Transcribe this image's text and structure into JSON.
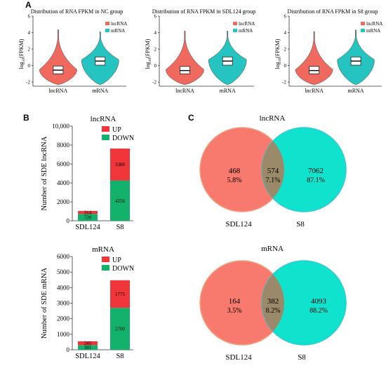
{
  "panels": {
    "a": "A",
    "b": "B",
    "c": "C"
  },
  "colors": {
    "lncrna": "#f0695f",
    "mrna": "#26c4c0",
    "up": "#f0353b",
    "down": "#13b26c",
    "venn_left": "#f87a6e",
    "venn_right": "#0fe3cd",
    "venn_overlap": "#9a8a6a"
  },
  "chart_data": [
    {
      "type": "violin",
      "title": "Distribution of RNA FPKM in NC group",
      "ylabel": "log10(FPKM)",
      "ylabel_main": "log",
      "ylabel_sub": "10",
      "ylabel_rest": "(FPKM)",
      "ylim": [
        -2.5,
        6
      ],
      "yticks": [
        "-2",
        "0",
        "2",
        "4",
        "6"
      ],
      "categories": [
        "lncRNA",
        "mRNA"
      ],
      "legend": [
        "lncRNA",
        "mRNA"
      ],
      "series": [
        {
          "name": "lncRNA",
          "q1": -1.0,
          "median": -0.55,
          "q3": -0.05,
          "mode": -0.5,
          "min": -2.3,
          "max": 4.3
        },
        {
          "name": "mRNA",
          "q1": 0.05,
          "median": 0.55,
          "q3": 1.05,
          "mode": 0.7,
          "min": -2.3,
          "max": 4.1
        }
      ]
    },
    {
      "type": "violin",
      "title": "Distribution of RNA FPKM in SDL124 group",
      "ylabel": "log10(FPKM)",
      "ylabel_main": "log",
      "ylabel_sub": "10",
      "ylabel_rest": "(FPKM)",
      "ylim": [
        -2.5,
        6
      ],
      "yticks": [
        "-2",
        "0",
        "2",
        "4",
        "6"
      ],
      "categories": [
        "lncRNA",
        "mRNA"
      ],
      "legend": [
        "lncRNA",
        "mRNA"
      ],
      "series": [
        {
          "name": "lncRNA",
          "q1": -1.0,
          "median": -0.6,
          "q3": -0.1,
          "mode": -0.5,
          "min": -2.3,
          "max": 4.2
        },
        {
          "name": "mRNA",
          "q1": 0.05,
          "median": 0.55,
          "q3": 1.05,
          "mode": 0.7,
          "min": -2.3,
          "max": 4.2
        }
      ]
    },
    {
      "type": "violin",
      "title": "Distribution of RNA FPKM in S8 group",
      "ylabel": "log10(FPKM)",
      "ylabel_main": "log",
      "ylabel_sub": "10",
      "ylabel_rest": "(FPKM)",
      "ylim": [
        -2.5,
        6
      ],
      "yticks": [
        "-2",
        "0",
        "2",
        "4",
        "6"
      ],
      "categories": [
        "lncRNA",
        "mRNA"
      ],
      "legend": [
        "lncRNA",
        "mRNA"
      ],
      "series": [
        {
          "name": "lncRNA",
          "q1": -1.0,
          "median": -0.6,
          "q3": -0.1,
          "mode": -0.5,
          "min": -2.3,
          "max": 4.1
        },
        {
          "name": "mRNA",
          "q1": 0.05,
          "median": 0.55,
          "q3": 1.05,
          "mode": 0.7,
          "min": -2.3,
          "max": 4.3
        }
      ]
    },
    {
      "type": "bar",
      "stacked": true,
      "title": "lncRNA",
      "ylabel": "Number of SDE lncRNA",
      "categories": [
        "SDL124",
        "S8"
      ],
      "ylim": [
        0,
        10000
      ],
      "yticks": [
        "0",
        "2000",
        "4000",
        "6000",
        "8000",
        "10,000"
      ],
      "ytick_values": [
        0,
        2000,
        4000,
        6000,
        8000,
        10000
      ],
      "legend": [
        "UP",
        "DOWN"
      ],
      "series": [
        {
          "name": "DOWN",
          "values": [
            728,
            4256
          ],
          "labels": [
            "728",
            "4256"
          ]
        },
        {
          "name": "UP",
          "values": [
            314,
            3380
          ],
          "labels": [
            "314",
            "3380"
          ]
        }
      ]
    },
    {
      "type": "bar",
      "stacked": true,
      "title": "mRNA",
      "ylabel": "Number of SDE mRNA",
      "categories": [
        "SDL124",
        "S8"
      ],
      "ylim": [
        0,
        6000
      ],
      "yticks": [
        "0",
        "1000",
        "2000",
        "3000",
        "4000",
        "5000",
        "6000"
      ],
      "ytick_values": [
        0,
        1000,
        2000,
        3000,
        4000,
        5000,
        6000
      ],
      "legend": [
        "UP",
        "DOWN"
      ],
      "series": [
        {
          "name": "DOWN",
          "values": [
            301,
            2700
          ],
          "labels": [
            "301",
            "2700"
          ]
        },
        {
          "name": "UP",
          "values": [
            245,
            1775
          ],
          "labels": [
            "245",
            "1775"
          ]
        }
      ]
    },
    {
      "type": "venn",
      "title": "lncRNA",
      "sets": [
        "SDL124",
        "S8"
      ],
      "regions": [
        {
          "count": "468",
          "percent": "5.8%"
        },
        {
          "count": "574",
          "percent": "7.1%"
        },
        {
          "count": "7062",
          "percent": "87.1%"
        }
      ]
    },
    {
      "type": "venn",
      "title": "mRNA",
      "sets": [
        "SDL124",
        "S8"
      ],
      "regions": [
        {
          "count": "164",
          "percent": "3.5%"
        },
        {
          "count": "382",
          "percent": "8.2%"
        },
        {
          "count": "4093",
          "percent": "88.2%"
        }
      ]
    }
  ]
}
